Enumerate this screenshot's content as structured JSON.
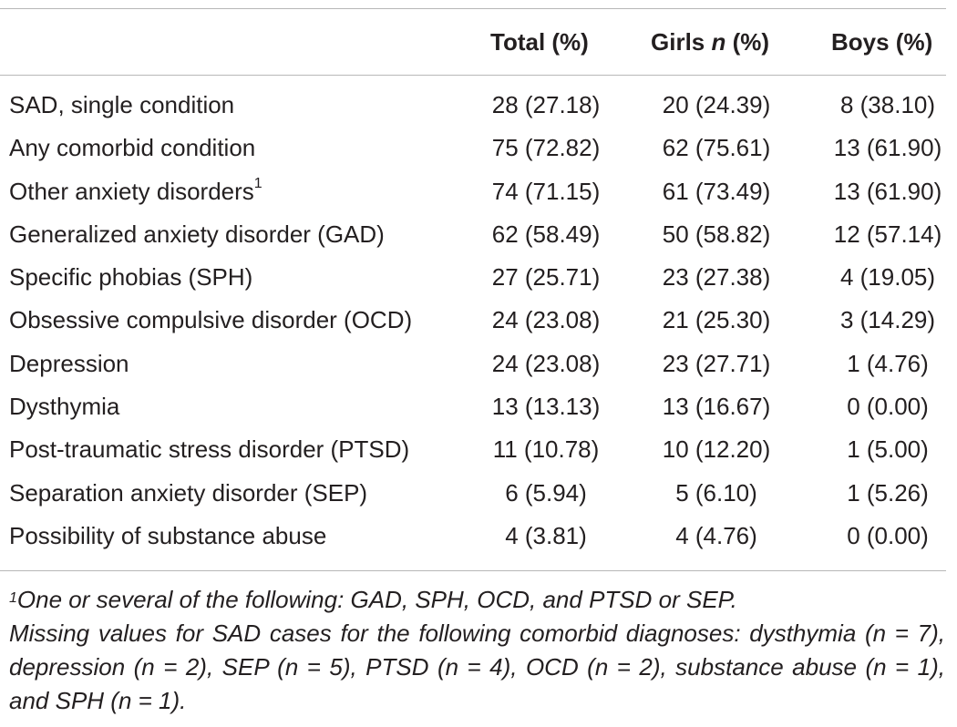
{
  "table": {
    "header": {
      "label": "",
      "total": "Total (%)",
      "girls_prefix": "Girls ",
      "girls_n": "n",
      "girls_suffix": " (%)",
      "boys": "Boys (%)"
    },
    "rows": [
      {
        "label": "SAD, single condition",
        "total": "28 (27.18)",
        "girls": "20 (24.39)",
        "boys": "8 (38.10)"
      },
      {
        "label": "Any comorbid condition",
        "total": "75 (72.82)",
        "girls": "62 (75.61)",
        "boys": "13 (61.90)"
      },
      {
        "label": "Other anxiety disorders",
        "sup": "1",
        "total": "74 (71.15)",
        "girls": "61 (73.49)",
        "boys": "13 (61.90)"
      },
      {
        "label": "Generalized anxiety disorder (GAD)",
        "total": "62 (58.49)",
        "girls": "50 (58.82)",
        "boys": "12 (57.14)"
      },
      {
        "label": "Specific phobias (SPH)",
        "total": "27 (25.71)",
        "girls": "23 (27.38)",
        "boys": "4 (19.05)"
      },
      {
        "label": "Obsessive compulsive disorder (OCD)",
        "total": "24 (23.08)",
        "girls": "21 (25.30)",
        "boys": "3 (14.29)"
      },
      {
        "label": "Depression",
        "total": "24 (23.08)",
        "girls": "23 (27.71)",
        "boys": "1 (4.76)"
      },
      {
        "label": "Dysthymia",
        "total": "13 (13.13)",
        "girls": "13 (16.67)",
        "boys": "0 (0.00)"
      },
      {
        "label": "Post-traumatic stress disorder (PTSD)",
        "total": "11 (10.78)",
        "girls": "10 (12.20)",
        "boys": "1 (5.00)"
      },
      {
        "label": "Separation anxiety disorder (SEP)",
        "total": "6 (5.94)",
        "girls": "5 (6.10)",
        "boys": "1 (5.26)"
      },
      {
        "label": "Possibility of substance abuse",
        "total": "4 (3.81)",
        "girls": "4 (4.76)",
        "boys": "0 (0.00)"
      }
    ]
  },
  "footnotes": {
    "note1_marker": "1",
    "note1_text": "One or several of the following: GAD, SPH, OCD, and PTSD or SEP.",
    "note2_text": "Missing values for SAD cases for the following comorbid diagnoses: dysthymia (n = 7), depression (n = 2), SEP (n = 5), PTSD (n = 4), OCD (n = 2), substance abuse (n = 1), and SPH (n = 1)."
  }
}
